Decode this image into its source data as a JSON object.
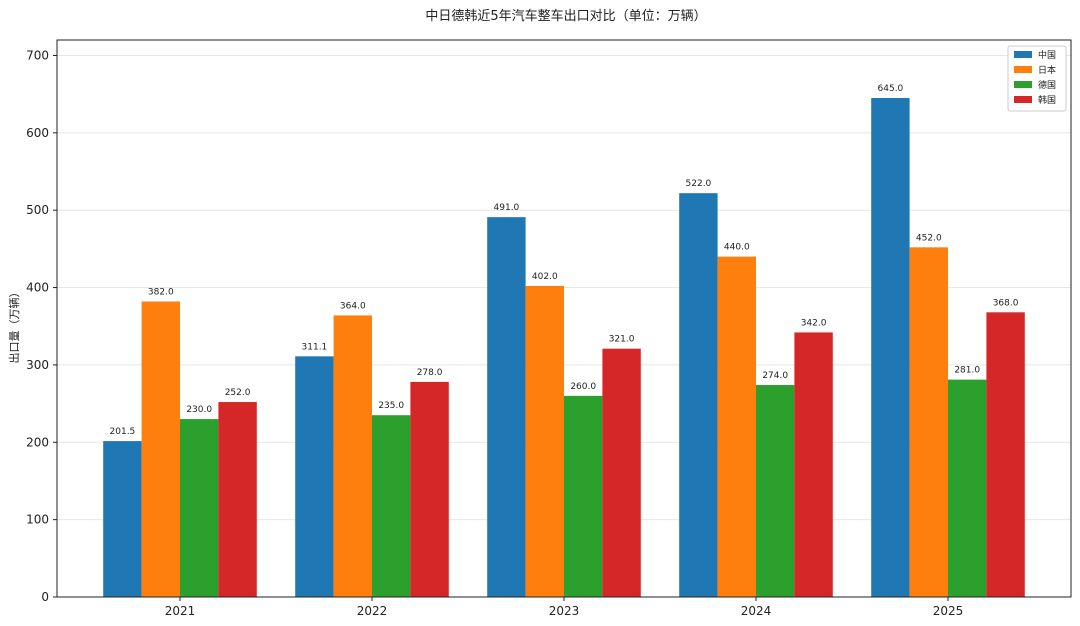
{
  "chart_data": {
    "type": "bar",
    "title": "中日德韩近5年汽车整车出口对比（单位：万辆）",
    "xlabel": "",
    "ylabel": "出口量（万辆）",
    "categories": [
      "2021",
      "2022",
      "2023",
      "2024",
      "2025"
    ],
    "series": [
      {
        "name": "中国",
        "color": "#1f77b4",
        "values": [
          201.5,
          311.1,
          491.0,
          522.0,
          645.0
        ]
      },
      {
        "name": "日本",
        "color": "#ff7f0e",
        "values": [
          382.0,
          364.0,
          402.0,
          440.0,
          452.0
        ]
      },
      {
        "name": "德国",
        "color": "#2ca02c",
        "values": [
          230.0,
          235.0,
          260.0,
          274.0,
          281.0
        ]
      },
      {
        "name": "韩国",
        "color": "#d62728",
        "values": [
          252.0,
          278.0,
          321.0,
          342.0,
          368.0
        ]
      }
    ],
    "ylim": [
      0,
      720
    ],
    "yticks": [
      0,
      100,
      200,
      300,
      400,
      500,
      600,
      700
    ],
    "data_label_format": "one-decimal",
    "grid": true,
    "grid_axis": "y",
    "legend_position": "top-right"
  }
}
